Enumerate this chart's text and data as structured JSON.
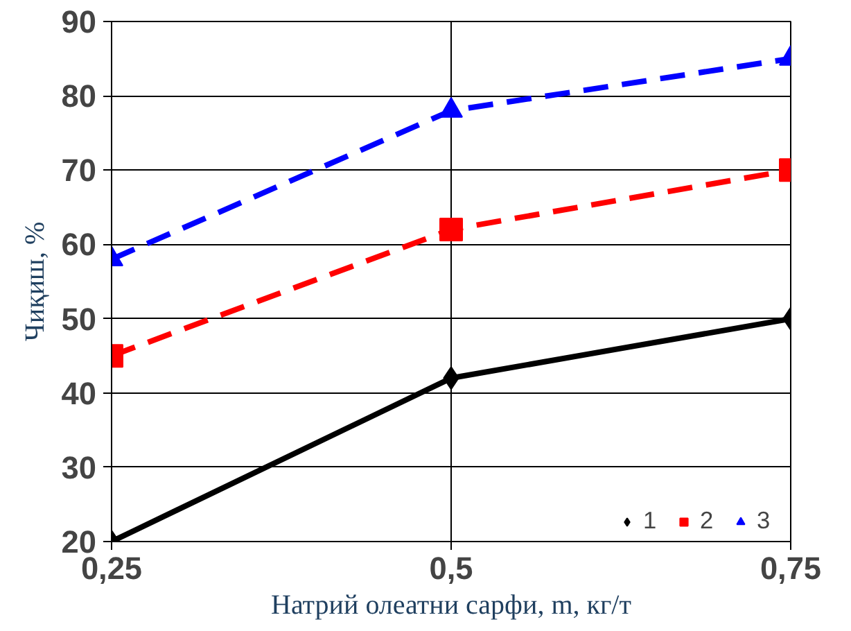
{
  "chart_data": {
    "type": "line",
    "xlabel": "Натрий олеатни сарфи, m, кг/т",
    "ylabel": "Чиқиш, %",
    "x": [
      0.25,
      0.5,
      0.75
    ],
    "series": [
      {
        "name": "1",
        "color": "#000000",
        "values": [
          20,
          42,
          50
        ],
        "marker": "diamond",
        "line_style": "solid"
      },
      {
        "name": "2",
        "color": "#ff0000",
        "values": [
          45,
          62,
          70
        ],
        "marker": "square",
        "line_style": "dashed"
      },
      {
        "name": "3",
        "color": "#0000ff",
        "values": [
          58,
          78,
          85
        ],
        "marker": "triangle",
        "line_style": "dashed"
      }
    ],
    "xlim": [
      0.25,
      0.75
    ],
    "xticks": [
      {
        "value": 0.25,
        "label": "0,25"
      },
      {
        "value": 0.5,
        "label": "0,5"
      },
      {
        "value": 0.75,
        "label": "0,75"
      }
    ],
    "ylim": [
      20,
      90
    ],
    "yticks": [
      20,
      30,
      40,
      50,
      60,
      70,
      80,
      90
    ],
    "grid": true,
    "legend": "bottom right"
  }
}
